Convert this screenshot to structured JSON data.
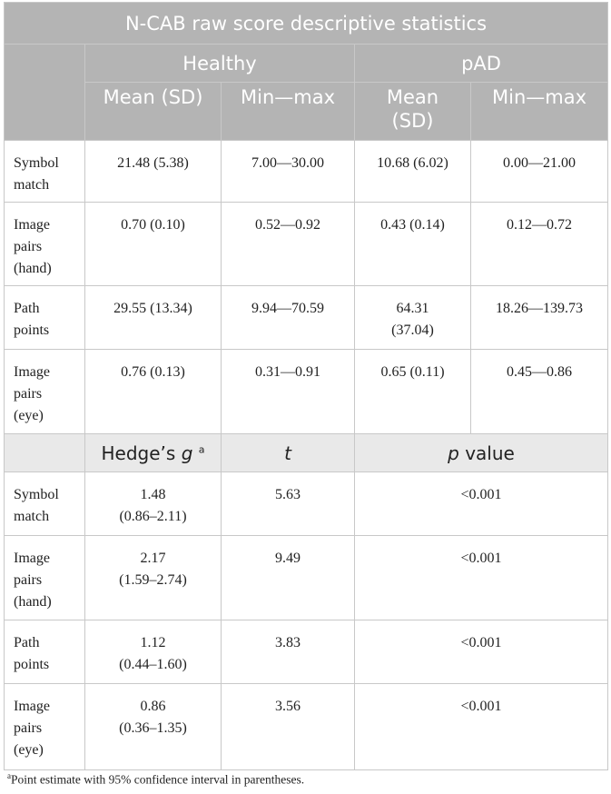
{
  "title": "N-CAB raw score descriptive statistics",
  "groups": [
    "Healthy",
    "pAD"
  ],
  "subheaders": [
    "Mean (SD)",
    "Min—max",
    "Mean\n(SD)",
    "Min—max"
  ],
  "desc_rows": [
    {
      "label": "Symbol\nmatch",
      "healthy_mean": "21.48 (5.38)",
      "healthy_range": "7.00—30.00",
      "pad_mean": "10.68 (6.02)",
      "pad_range": "0.00—21.00"
    },
    {
      "label": "Image\npairs\n(hand)",
      "healthy_mean": "0.70 (0.10)",
      "healthy_range": "0.52—0.92",
      "pad_mean": "0.43 (0.14)",
      "pad_range": "0.12—0.72"
    },
    {
      "label": "Path\npoints",
      "healthy_mean": "29.55 (13.34)",
      "healthy_range": "9.94—70.59",
      "pad_mean": "64.31\n(37.04)",
      "pad_range": "18.26—139.73"
    },
    {
      "label": "Image\npairs\n(eye)",
      "healthy_mean": "0.76 (0.13)",
      "healthy_range": "0.31—0.91",
      "pad_mean": "0.65 (0.11)",
      "pad_range": "0.45—0.86"
    }
  ],
  "stat_header": {
    "hedges_label": "Hedge’s ",
    "hedges_g": "g",
    "hedges_sup": "a",
    "t": "t",
    "p_italic": "p",
    "p_rest": " value"
  },
  "stat_rows": [
    {
      "label": "Symbol\nmatch",
      "g": "1.48\n(0.86–2.11)",
      "t": "5.63",
      "p": "<0.001"
    },
    {
      "label": "Image\npairs\n(hand)",
      "g": "2.17\n(1.59–2.74)",
      "t": "9.49",
      "p": "<0.001"
    },
    {
      "label": "Path\npoints",
      "g": "1.12\n(0.44–1.60)",
      "t": "3.83",
      "p": "<0.001"
    },
    {
      "label": "Image\npairs\n(eye)",
      "g": "0.86\n(0.36–1.35)",
      "t": "3.56",
      "p": "<0.001"
    }
  ],
  "footnote": {
    "marker": "a",
    "text": "Point estimate with 95% confidence interval in parentheses."
  }
}
